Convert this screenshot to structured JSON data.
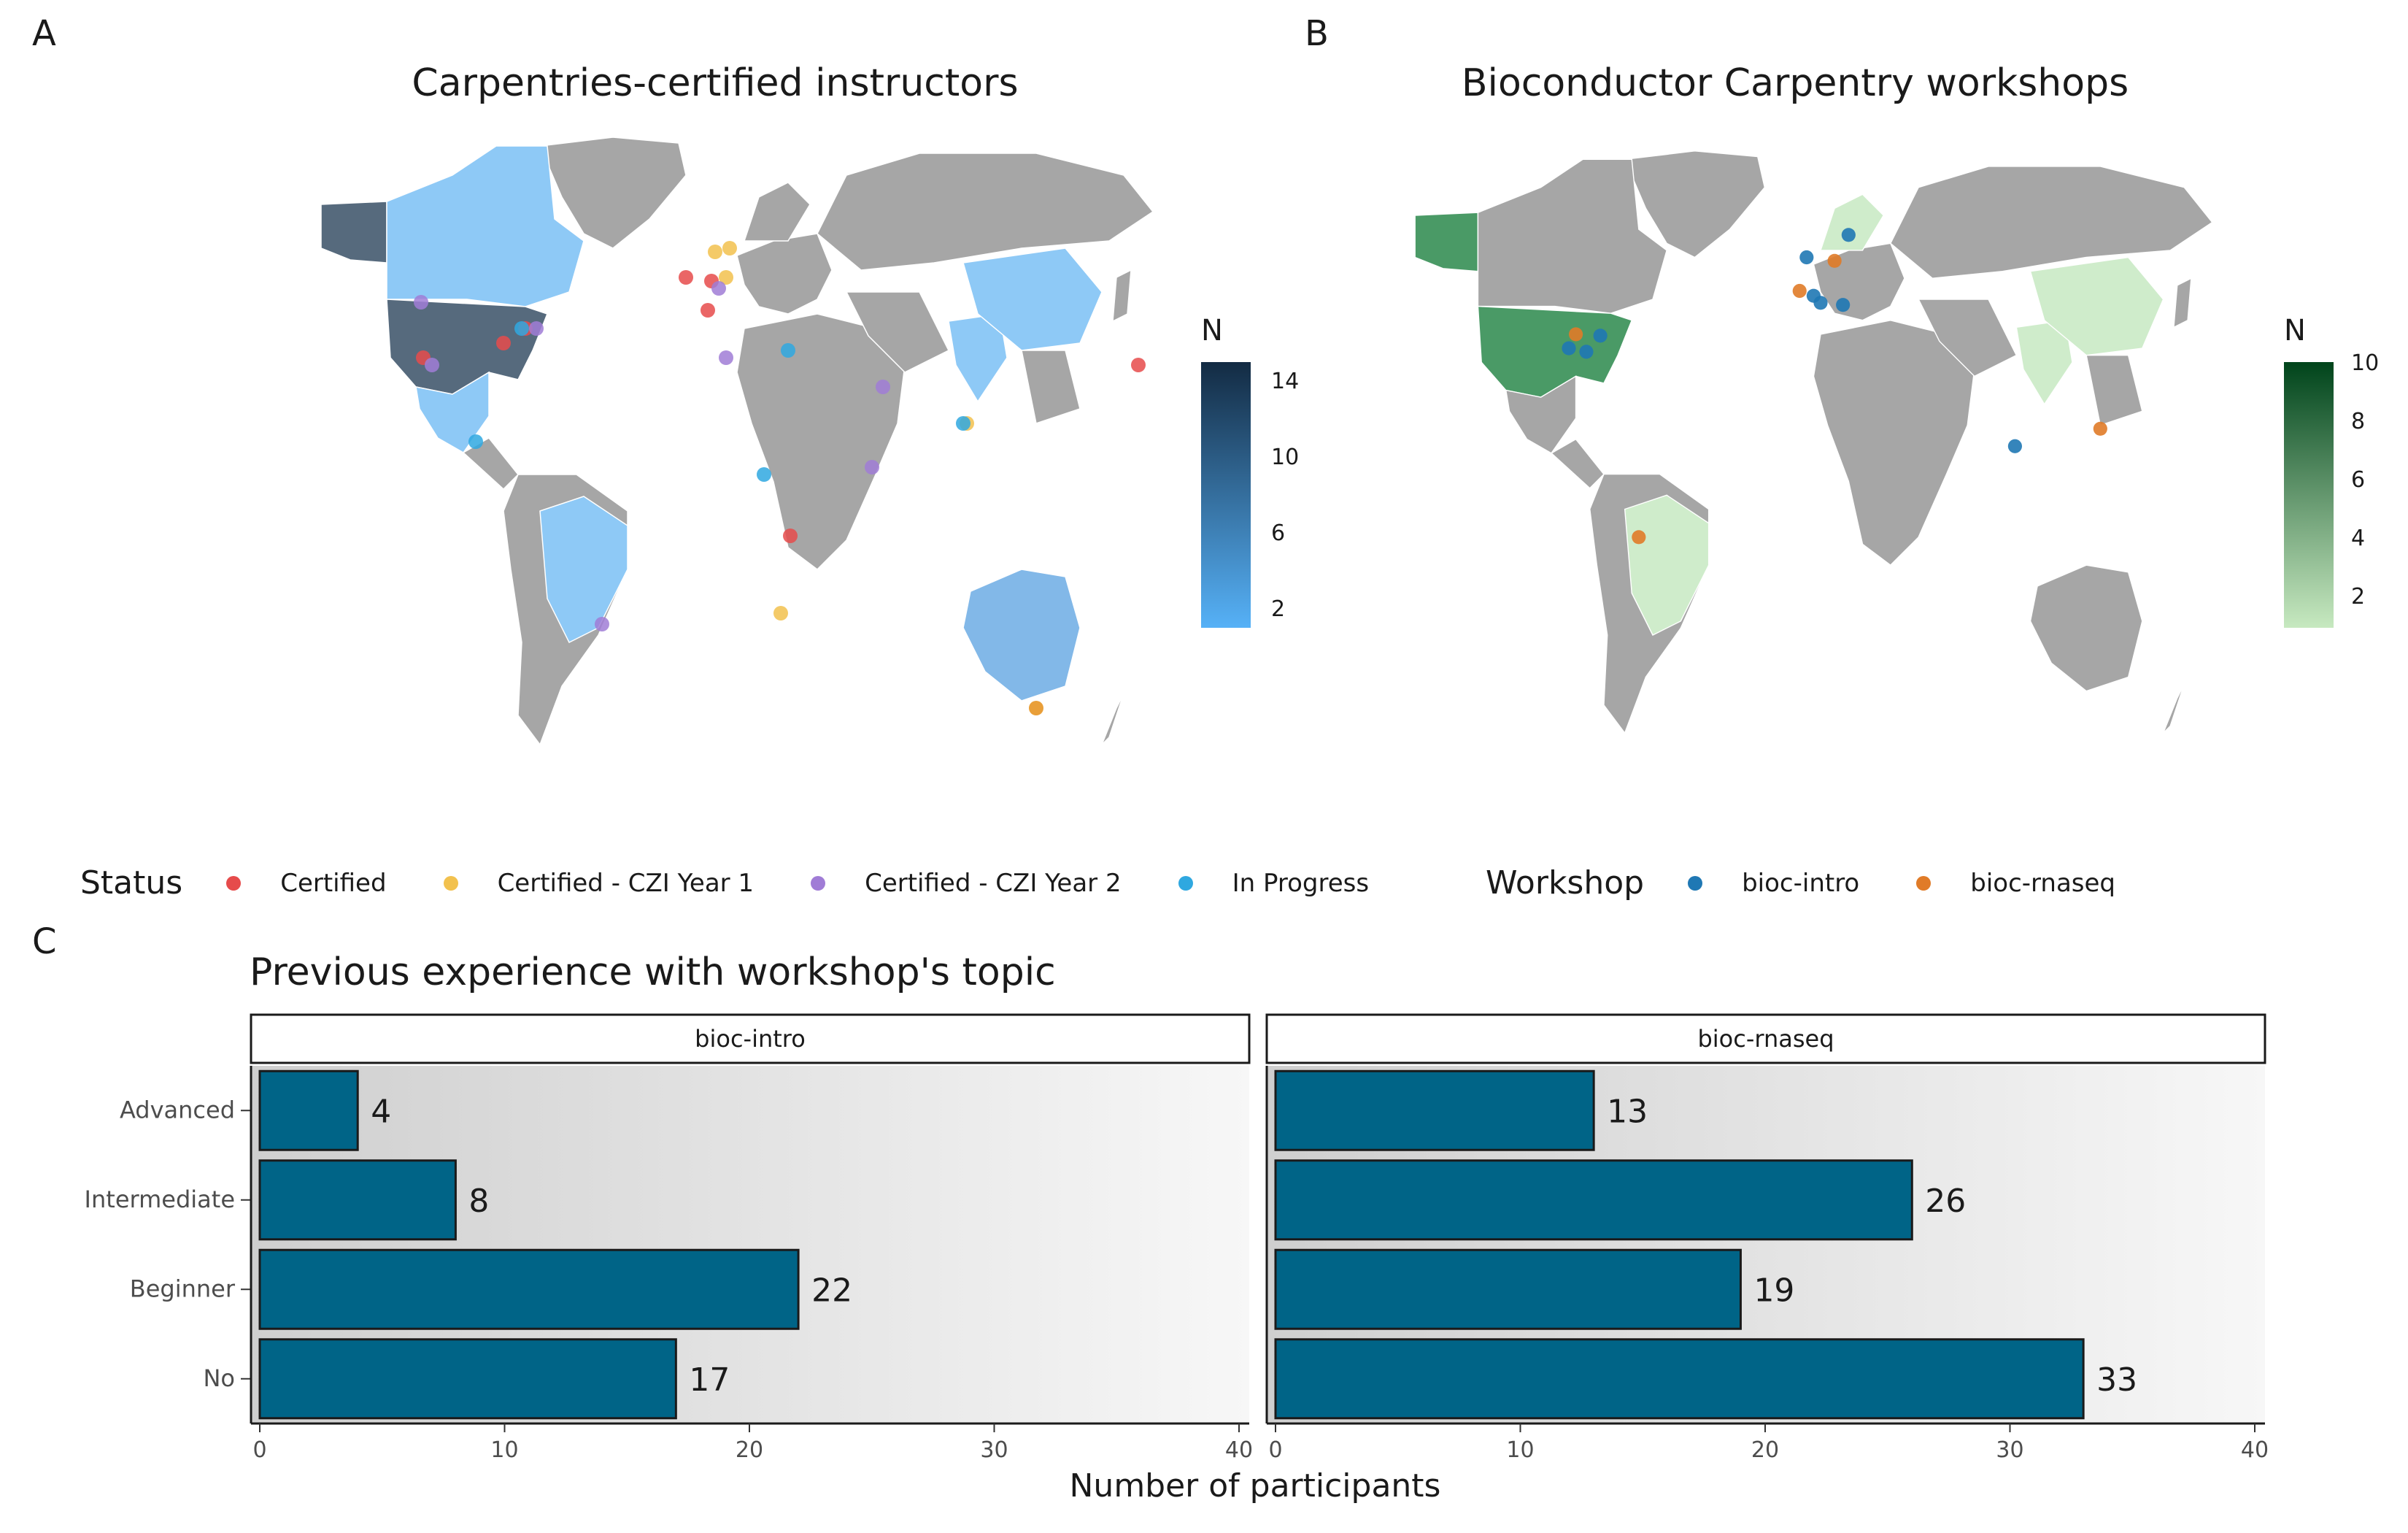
{
  "panels": {
    "a_letter": "A",
    "b_letter": "B",
    "c_letter": "C"
  },
  "map_a": {
    "title": "Carpentries-certified instructors",
    "colorbar": {
      "title": "N",
      "ticks": [
        "14",
        "10",
        "6",
        "2"
      ],
      "color_low": "#56B1F7",
      "color_high": "#132B43"
    },
    "legend": {
      "title": "Status",
      "items": [
        {
          "label": "Certified",
          "color": "#E64B4B"
        },
        {
          "label": "Certified - CZI Year 1",
          "color": "#F2C14E"
        },
        {
          "label": "Certified - CZI Year 2",
          "color": "#A07CD6"
        },
        {
          "label": "In Progress",
          "color": "#2FA8E0"
        }
      ]
    }
  },
  "map_b": {
    "title": "Bioconductor Carpentry workshops",
    "colorbar": {
      "title": "N",
      "ticks": [
        "10",
        "8",
        "6",
        "4",
        "2"
      ],
      "color_low": "#C7E9C0",
      "color_high": "#00441B"
    },
    "legend": {
      "title": "Workshop",
      "items": [
        {
          "label": "bioc-intro",
          "color": "#1F78B4"
        },
        {
          "label": "bioc-rnaseq",
          "color": "#E07B28"
        }
      ]
    }
  },
  "chart_data": {
    "type": "bar",
    "title": "Previous experience with workshop's topic",
    "xlabel": "Number of participants",
    "ylabel": "",
    "categories": [
      "Advanced",
      "Intermediate",
      "Beginner",
      "No"
    ],
    "xlim": [
      0,
      40
    ],
    "xticks": [
      0,
      10,
      20,
      30,
      40
    ],
    "bar_color": "#006487",
    "facets": [
      {
        "name": "bioc-intro",
        "values": [
          4,
          8,
          22,
          17
        ]
      },
      {
        "name": "bioc-rnaseq",
        "values": [
          13,
          26,
          19,
          33
        ]
      }
    ]
  }
}
